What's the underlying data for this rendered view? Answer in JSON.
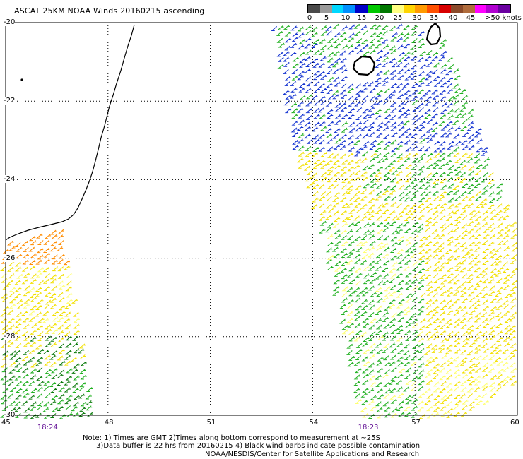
{
  "header": {
    "title": "ASCAT 25KM NOAA Winds 20160215 ascending"
  },
  "legend": {
    "labels": [
      "0",
      "5",
      "10",
      "15",
      "20",
      "25",
      "30",
      "35",
      "40",
      "45",
      ">50 knots"
    ],
    "colors": [
      "#4a4a4a",
      "#9a9a9a",
      "#00d8ff",
      "#0090ff",
      "#0000c8",
      "#00c800",
      "#007800",
      "#ffff80",
      "#ffd400",
      "#ff9a00",
      "#ff5000",
      "#d80000",
      "#8b4a2a",
      "#b06c3c",
      "#ff00ff",
      "#b000d0",
      "#6a00a0"
    ]
  },
  "map": {
    "lon_ticks": [
      "45",
      "48",
      "51",
      "54",
      "57",
      "60"
    ],
    "lat_ticks": [
      "-20",
      "-22",
      "-24",
      "-26",
      "-28",
      "-30"
    ],
    "lon_range": [
      45,
      60
    ],
    "lat_range": [
      -30,
      -20
    ],
    "time_labels": [
      {
        "text": "18:24",
        "lon": 46.2
      },
      {
        "text": "18:23",
        "lon": 55.6
      }
    ],
    "wind_colors": {
      "blue": "#1030d0",
      "green": "#20b020",
      "dark_green": "#0b7a0b",
      "yellow": "#f2e000",
      "light_yellow": "#ffff70",
      "orange": "#ff8c00",
      "black": "#000000"
    }
  },
  "footer": {
    "notes_line1": "Note: 1) Times are GMT 2)Times along bottom correspond to measurement at ~25S",
    "notes_line2": "      3)Data buffer is 22 hrs from 20160215 4) Black wind barbs indicate possible contamination",
    "credit": "NOAA/NESDIS/Center for Satellite Applications and Research"
  }
}
